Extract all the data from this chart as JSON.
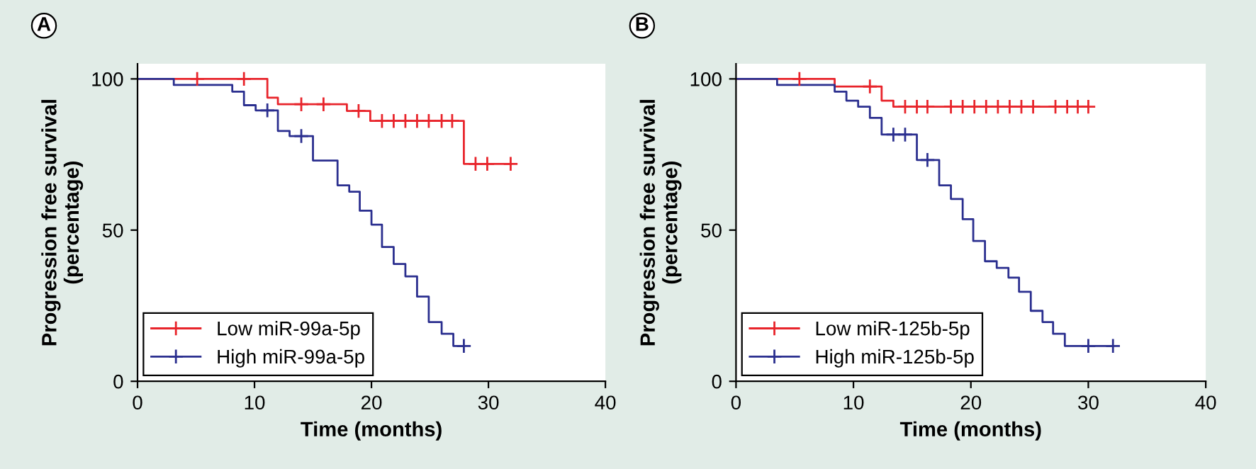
{
  "chart_data": [
    {
      "type": "step",
      "title": "A",
      "xlabel": "Time (months)",
      "ylabel": "Progression free survival\n(percentage)",
      "xlim": [
        0,
        40
      ],
      "xticks": [
        0,
        10,
        20,
        30,
        40
      ],
      "ylim": [
        0,
        105
      ],
      "yticks": [
        0,
        50,
        100
      ],
      "grid": false,
      "legend": "bottom left",
      "series": [
        {
          "name": "Low miR-99a-5p",
          "color": "#e8242b",
          "x": [
            0,
            11.1,
            12.0,
            17.9,
            19.9,
            27.9,
            31.9
          ],
          "values": [
            100,
            93.8,
            91.6,
            89.4,
            86.1,
            71.9,
            71.9
          ]
        },
        {
          "name": "High miR-99a-5p",
          "color": "#2b2f8f",
          "x": [
            0,
            3.1,
            8.1,
            9.1,
            10.1,
            12.0,
            13.0,
            15.0,
            17.1,
            18.1,
            19.0,
            20.0,
            20.9,
            21.9,
            22.9,
            23.9,
            24.9,
            26.0,
            27.0,
            27.9
          ],
          "values": [
            100,
            98,
            95.8,
            91.3,
            89.6,
            82.8,
            81.1,
            73.0,
            64.8,
            62.7,
            56.4,
            51.8,
            44.4,
            38.8,
            34.7,
            28.0,
            19.6,
            15.7,
            11.7,
            11.7
          ]
        },
        {
          "type": "scatter",
          "marker": "cross",
          "color": "#e8242b",
          "x": [
            5.1,
            9.1,
            14.0,
            15.9,
            18.9,
            20.9,
            21.9,
            22.9,
            23.9,
            24.9,
            26.0,
            26.9,
            28.9,
            29.9,
            31.9
          ],
          "values": [
            100,
            100,
            91.6,
            91.6,
            89.4,
            86.1,
            86.1,
            86.1,
            86.1,
            86.1,
            86.1,
            86.1,
            71.9,
            71.9,
            71.9
          ]
        },
        {
          "type": "scatter",
          "marker": "cross",
          "color": "#2b2f8f",
          "x": [
            11.1,
            14.0,
            27.9
          ],
          "values": [
            89.6,
            81.1,
            11.7
          ]
        }
      ]
    },
    {
      "type": "step",
      "title": "B",
      "xlabel": "Time (months)",
      "ylabel": "Progression free survival\n(percentage)",
      "xlim": [
        0,
        40
      ],
      "xticks": [
        0,
        10,
        20,
        30,
        40
      ],
      "ylim": [
        0,
        105
      ],
      "yticks": [
        0,
        50,
        100
      ],
      "grid": false,
      "legend": "bottom left",
      "series": [
        {
          "name": "Low miR-125b-5p",
          "color": "#e8242b",
          "x": [
            0,
            8.4,
            12.4,
            13.4,
            30.0
          ],
          "values": [
            100,
            97.5,
            92.8,
            90.8,
            90.8
          ]
        },
        {
          "name": "High miR-125b-5p",
          "color": "#2b2f8f",
          "x": [
            0,
            3.5,
            8.4,
            9.4,
            10.4,
            11.4,
            12.4,
            15.4,
            17.3,
            18.3,
            19.3,
            20.2,
            21.2,
            22.2,
            23.2,
            24.1,
            25.1,
            26.1,
            27.0,
            28.0,
            32.1
          ],
          "values": [
            100,
            98,
            95.8,
            92.8,
            90.8,
            87.1,
            81.6,
            73.2,
            64.8,
            60.3,
            53.6,
            46.4,
            39.7,
            37.5,
            34.3,
            29.6,
            23.3,
            19.6,
            15.7,
            11.7,
            11.7
          ]
        },
        {
          "type": "scatter",
          "marker": "cross",
          "color": "#e8242b",
          "x": [
            5.4,
            11.4,
            14.4,
            15.4,
            16.3,
            18.3,
            19.3,
            20.3,
            21.3,
            22.3,
            23.3,
            24.3,
            25.3,
            27.2,
            28.2,
            29.1,
            30.0
          ],
          "values": [
            100,
            97.5,
            90.8,
            90.8,
            90.8,
            90.8,
            90.8,
            90.8,
            90.8,
            90.8,
            90.8,
            90.8,
            90.8,
            90.8,
            90.8,
            90.8,
            90.8
          ]
        },
        {
          "type": "scatter",
          "marker": "cross",
          "color": "#2b2f8f",
          "x": [
            13.4,
            14.4,
            16.3,
            30.0,
            32.1
          ],
          "values": [
            81.6,
            81.6,
            73.2,
            11.7,
            11.7
          ]
        }
      ]
    }
  ]
}
